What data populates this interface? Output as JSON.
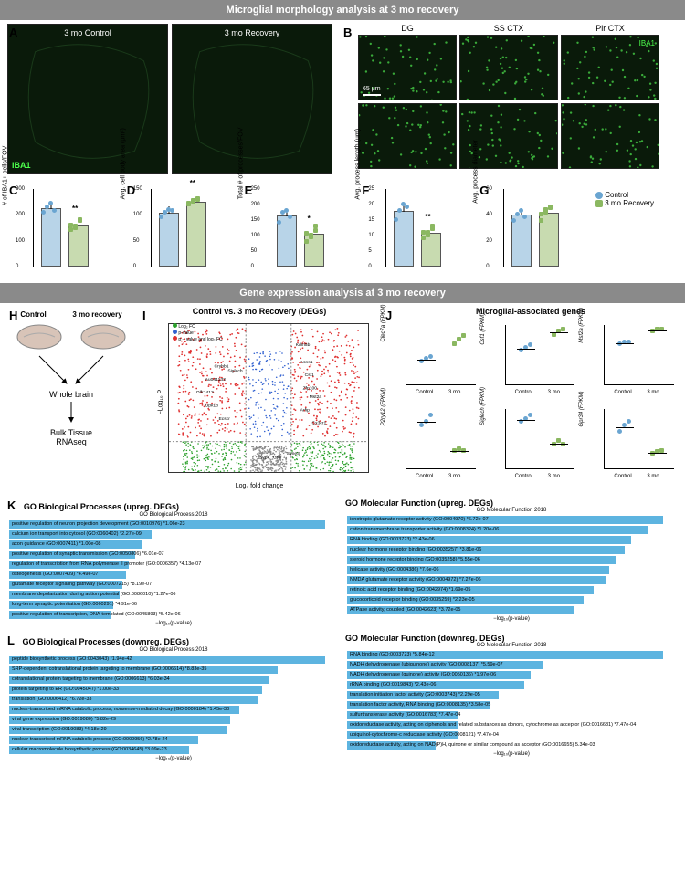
{
  "section1_title": "Microglial morphology analysis at 3 mo recovery",
  "section2_title": "Gene expression analysis at 3 mo recovery",
  "panelA": {
    "label": "A",
    "left_label": "3 mo Control",
    "right_label": "3 mo Recovery",
    "marker": "IBA1"
  },
  "panelB": {
    "label": "B",
    "cols": [
      "DG",
      "SS CTX",
      "Pir CTX"
    ],
    "rows": [
      "Control",
      "3 mo Recovery"
    ],
    "marker": "IBA1",
    "scale": "65 μm"
  },
  "barcharts": {
    "colors": {
      "control": "#b8d4e8",
      "recovery": "#c8dbb0",
      "control_pt": "#6aa5d1",
      "recovery_pt": "#8bb861"
    },
    "C": {
      "label": "C",
      "ylabel": "# of IBA1+ cells/FOV",
      "ylim": 300,
      "ticks": [
        0,
        100,
        200,
        300
      ],
      "control": 225,
      "recovery": 160,
      "sig": "**",
      "ctrl_pts": [
        210,
        230,
        245,
        215
      ],
      "rec_pts": [
        140,
        155,
        175,
        160,
        150,
        180
      ]
    },
    "D": {
      "label": "D",
      "ylabel": "Avg. cell body area (μm²)",
      "ylim": 150,
      "ticks": [
        0,
        50,
        100,
        150
      ],
      "control": 105,
      "recovery": 125,
      "sig": "**",
      "ctrl_pts": [
        95,
        105,
        110,
        108
      ],
      "rec_pts": [
        120,
        127,
        130,
        122,
        126,
        128
      ]
    },
    "E": {
      "label": "E",
      "ylabel": "Total # of processes/FOV",
      "ylim": 250,
      "ticks": [
        0,
        50,
        100,
        150,
        200,
        250
      ],
      "control": 165,
      "recovery": 105,
      "sig": "*",
      "ctrl_pts": [
        140,
        175,
        180,
        160
      ],
      "rec_pts": [
        80,
        95,
        115,
        105,
        100,
        130
      ]
    },
    "F": {
      "label": "F",
      "ylabel": "Avg. process length (um)",
      "ylim": 25,
      "ticks": [
        0,
        5,
        10,
        15,
        20,
        25
      ],
      "control": 18,
      "recovery": 11,
      "sig": "**",
      "ctrl_pts": [
        15,
        18,
        20,
        19
      ],
      "rec_pts": [
        9,
        10,
        12,
        11,
        11,
        13
      ]
    },
    "G": {
      "label": "G",
      "ylabel": "Avg. process diameter",
      "ylim": 60,
      "ticks": [
        0,
        20,
        40,
        60
      ],
      "control": 40,
      "recovery": 42,
      "sig": "",
      "ctrl_pts": [
        35,
        40,
        43,
        38
      ],
      "rec_pts": [
        35,
        42,
        45,
        40,
        44,
        46
      ]
    }
  },
  "legend": {
    "control": "Control",
    "recovery": "3 mo Recovery"
  },
  "panelH": {
    "label": "H",
    "conditions": [
      "Control",
      "3 mo recovery"
    ],
    "step1": "Whole brain",
    "step2": "Bulk Tissue\nRNAseq"
  },
  "panelI": {
    "label": "I",
    "title": "Control vs. 3 mo Recovery (DEGs)",
    "xlabel": "Log₂ fold change",
    "ylabel": "−Log₁₀ P",
    "legend": [
      "Log₂ FC",
      "p-value",
      "p − value and log₂ FC"
    ],
    "legend_colors": [
      "#2aa02a",
      "#3060d0",
      "#e03030"
    ],
    "genes": [
      "Crybb1",
      "Siglech",
      "Au041133",
      "Olfr1413",
      "Upk1b",
      "Ecscr",
      "Sypl",
      "Grhl",
      "Kdm5b",
      "Asns1",
      "Csf1",
      "Zfp100",
      "Mst2a",
      "Arfip",
      "Cx3cr1",
      "Syne3"
    ]
  },
  "panelJ": {
    "label": "J",
    "title": "Microglial-associated genes",
    "genes": [
      {
        "name": "Clec7a",
        "ylabel": "Clec7a (FPKM)",
        "ylim": 1.5,
        "control": [
          0.5,
          0.55,
          0.6
        ],
        "rec": [
          0.9,
          1.0,
          1.1
        ]
      },
      {
        "name": "Csf1",
        "ylabel": "Csf1 (FPKM)",
        "ylim": 6,
        "control": [
          3.0,
          3.3,
          3.5
        ],
        "rec": [
          4.5,
          4.8,
          5.0
        ]
      },
      {
        "name": "Msf2a",
        "ylabel": "Msf2a (FPKM)",
        "ylim": 30,
        "control": [
          18,
          19,
          19
        ],
        "rec": [
          24,
          25,
          25
        ]
      },
      {
        "name": "P2ry12",
        "ylabel": "P2ry12 (FPKM)",
        "ylim": 20,
        "control": [
          13,
          14,
          16
        ],
        "rec": [
          5,
          5.5,
          5
        ]
      },
      {
        "name": "Siglech",
        "ylabel": "Siglech (FPKM)",
        "ylim": 10,
        "control": [
          7,
          7.5,
          8
        ],
        "rec": [
          3.5,
          4,
          3.5
        ]
      },
      {
        "name": "Gpr34",
        "ylabel": "Gpr34 (FPKM)",
        "ylim": 20,
        "control": [
          11,
          13,
          14
        ],
        "rec": [
          4,
          4.5,
          5
        ]
      }
    ],
    "xcats": [
      "Control",
      "3 mo"
    ]
  },
  "panelK": {
    "label": "K",
    "bp_title": "GO Biological Processes (upreg. DEGs)",
    "bp_sub": "GO Biological Process 2018",
    "bp": [
      {
        "text": "positive regulation of neuron projection development (GO:0010976) *1.06e-23",
        "val": 100
      },
      {
        "text": "calcium ion transport into cytosol (GO:0060402) *2.27e-09",
        "val": 45
      },
      {
        "text": "axon guidance (GO:0007411) *1.00e-08",
        "val": 42
      },
      {
        "text": "positive regulation of synaptic transmission (GO:0050806) *6.01e-07",
        "val": 40
      },
      {
        "text": "regulation of transcription from RNA polymerase II promoter (GO:0006357) *4.13e-07",
        "val": 38
      },
      {
        "text": "osteogenesis (GO:0007409) *4.49e-07",
        "val": 37
      },
      {
        "text": "glutamate receptor signaling pathway (GO:0007215) *8.19e-07",
        "val": 36
      },
      {
        "text": "membrane depolarization during action potential (GO:0086010) *1.27e-06",
        "val": 35
      },
      {
        "text": "long-term synaptic potentiation (GO:0060291) *4.91e-06",
        "val": 33
      },
      {
        "text": "positive regulation of transcription, DNA-templated (GO:0045893) *5.42e-06",
        "val": 32
      }
    ],
    "mf_title": "GO Molecular Function (upreg. DEGs)",
    "mf_sub": "GO Molecular Function 2018",
    "mf": [
      {
        "text": "ionotropic glutamate receptor activity (GO:0004970) *6.72e-07",
        "val": 100
      },
      {
        "text": "cation transmembrane transporter activity (GO:0008324) *1.20e-06",
        "val": 95
      },
      {
        "text": "RNA binding (GO:0003723) *2.43e-06",
        "val": 90
      },
      {
        "text": "nuclear hormone receptor binding (GO:0035257) *3.81e-06",
        "val": 88
      },
      {
        "text": "steroid hormone receptor binding (GO:0035258) *5.55e-06",
        "val": 85
      },
      {
        "text": "helicase activity (GO:0004386) *7.6e-06",
        "val": 83
      },
      {
        "text": "NMDA glutamate receptor activity (GO:0004972) *7.27e-06",
        "val": 82
      },
      {
        "text": "retinoic acid receptor binding (GO:0042974) *1.69e-05",
        "val": 78
      },
      {
        "text": "glucocorticoid receptor binding (GO:0035259) *2.23e-05",
        "val": 75
      },
      {
        "text": "ATPase activity, coupled (GO:0042623) *3.72e-05",
        "val": 72
      }
    ],
    "xlabel": "−log₁₀(p-value)"
  },
  "panelL": {
    "label": "L",
    "bp_title": "GO Biological Processes (downreg. DEGs)",
    "bp_sub": "GO Biological Process 2018",
    "bp": [
      {
        "text": "peptide biosynthetic process (GO:0043043) *1.94e-42",
        "val": 100
      },
      {
        "text": "SRP-dependent cotranslational protein targeting to membrane (GO:0006614) *8.83e-35",
        "val": 85
      },
      {
        "text": "cotranslational protein targeting to membrane (GO:0006613) *6.03e-34",
        "val": 82
      },
      {
        "text": "protein targeting to ER (GO:0045047) *1.00e-33",
        "val": 80
      },
      {
        "text": "translation (GO:0006412) *6.72e-33",
        "val": 79
      },
      {
        "text": "nuclear-transcribed mRNA catabolic process, nonsense-mediated decay (GO:0000184) *1.45e-30",
        "val": 73
      },
      {
        "text": "viral gene expression (GO:0019080) *5.82e-29",
        "val": 70
      },
      {
        "text": "viral transcription (GO:0019083) *4.18e-29",
        "val": 69
      },
      {
        "text": "nuclear-transcribed mRNA catabolic process (GO:0000956) *2.78e-24",
        "val": 60
      },
      {
        "text": "cellular macromolecule biosynthetic process (GO:0034645) *3.09e-23",
        "val": 57
      }
    ],
    "mf_title": "GO Molecular Function (downreg. DEGs)",
    "mf_sub": "GO Molecular Function 2018",
    "mf": [
      {
        "text": "RNA binding (GO:0003723) *5.84e-12",
        "val": 100
      },
      {
        "text": "NADH dehydrogenase (ubiquinone) activity (GO:0008137) *5.59e-07",
        "val": 62
      },
      {
        "text": "NADH dehydrogenase (quinone) activity (GO:0050136) *1.97e-06",
        "val": 58
      },
      {
        "text": "rRNA binding (GO:0019843) *2.43e-06",
        "val": 56
      },
      {
        "text": "translation initiation factor activity (GO:0003743) *2.29e-05",
        "val": 48
      },
      {
        "text": "translation factor activity, RNA binding (GO:0008135) *3.58e-05",
        "val": 45
      },
      {
        "text": "sulfurtransferase activity (GO:0016783) *7.47e-04",
        "val": 35
      },
      {
        "text": "oxidoreductase activity, acting on diphenols and related substances as donors, cytochrome as acceptor (GO:0016681) *7.47e-04",
        "val": 35
      },
      {
        "text": "ubiquinol-cytochrome-c reductase activity (GO:0008121) *7.47e-04",
        "val": 35
      },
      {
        "text": "oxidoreductase activity, acting on NAD(P)H, quinone or similar compound as acceptor (GO:0016655)  5.34e-03",
        "val": 28
      }
    ],
    "xlabel": "−log₁₀(p-value)"
  },
  "colors": {
    "go_bar": "#5db4e0",
    "brain_fill": "#d8c4b8"
  }
}
